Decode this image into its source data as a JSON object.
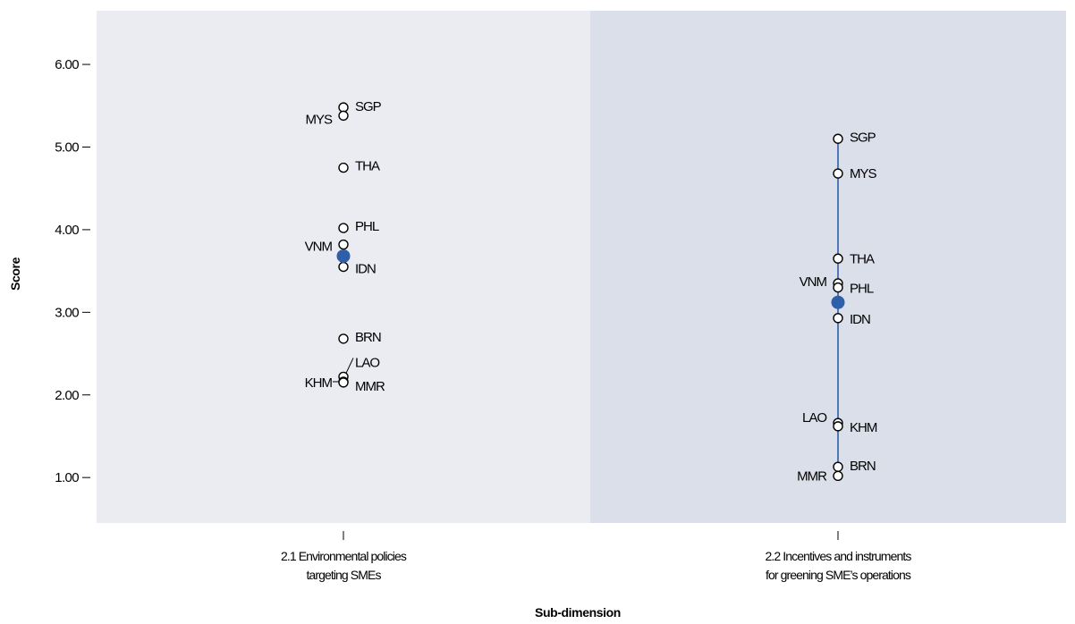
{
  "chart_data": {
    "type": "scatter",
    "xlabel": "Sub-dimension",
    "ylabel": "Score",
    "ylim": [
      0.45,
      6.65
    ],
    "yticks": [
      "1.00",
      "2.00",
      "3.00",
      "4.00",
      "5.00",
      "6.00"
    ],
    "categories": [
      {
        "line1": "2.1 Environmental policies",
        "line2": "targeting SMEs"
      },
      {
        "line1": "2.2 Incentives and instruments",
        "line2": "for greening SME’s operations"
      }
    ],
    "panels": [
      {
        "category_index": 0,
        "background": "#ebebf2",
        "range_line": false,
        "average": 3.68,
        "points": [
          {
            "code": "SGP",
            "value": 5.48,
            "side": "right",
            "dy": -1
          },
          {
            "code": "MYS",
            "value": 5.38,
            "side": "left",
            "dy": 4
          },
          {
            "code": "THA",
            "value": 4.75,
            "side": "right",
            "dy": -2
          },
          {
            "code": "PHL",
            "value": 4.02,
            "side": "right",
            "dy": -2
          },
          {
            "code": "VNM",
            "value": 3.82,
            "side": "left",
            "dy": 2
          },
          {
            "code": "IDN",
            "value": 3.55,
            "side": "right",
            "dy": 2
          },
          {
            "code": "BRN",
            "value": 2.68,
            "side": "right",
            "dy": -2
          },
          {
            "code": "LAO",
            "value": 2.22,
            "side": "right",
            "dy": -16,
            "leader": true
          },
          {
            "code": "KHM",
            "value": 2.16,
            "side": "left",
            "dy": 1,
            "leader": true
          },
          {
            "code": "MMR",
            "value": 2.15,
            "side": "right",
            "dy": 4
          }
        ]
      },
      {
        "category_index": 1,
        "background": "#dbdfea",
        "range_line": true,
        "average": 3.12,
        "points": [
          {
            "code": "SGP",
            "value": 5.1,
            "side": "right",
            "dy": -2
          },
          {
            "code": "MYS",
            "value": 4.68,
            "side": "right",
            "dy": 0
          },
          {
            "code": "THA",
            "value": 3.65,
            "side": "right",
            "dy": 0
          },
          {
            "code": "VNM",
            "value": 3.35,
            "side": "left",
            "dy": -2
          },
          {
            "code": "PHL",
            "value": 3.3,
            "side": "right",
            "dy": 1
          },
          {
            "code": "IDN",
            "value": 2.93,
            "side": "right",
            "dy": 1
          },
          {
            "code": "LAO",
            "value": 1.66,
            "side": "left",
            "dy": -6
          },
          {
            "code": "KHM",
            "value": 1.62,
            "side": "right",
            "dy": 1
          },
          {
            "code": "BRN",
            "value": 1.13,
            "side": "right",
            "dy": -1
          },
          {
            "code": "MMR",
            "value": 1.02,
            "side": "left",
            "dy": 0
          }
        ]
      }
    ],
    "colors": {
      "average_marker": "#2e5fa8",
      "range_line": "#2e5fa8",
      "point_outline": "#000000",
      "point_fill": "#ffffff",
      "axis": "#000000"
    }
  }
}
